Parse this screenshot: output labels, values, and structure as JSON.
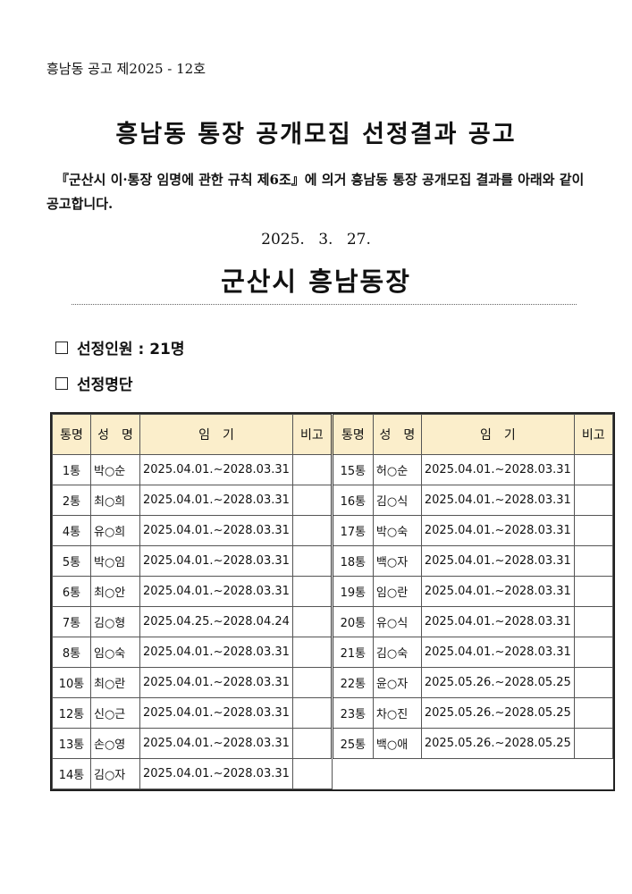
{
  "notice_no": "흥남동 공고 제2025 - 12호",
  "title": "흥남동 통장 공개모집 선정결과 공고",
  "body": "『군산시 이·통장 임명에 관한 규칙 제6조』에 의거 흥남동 통장 공개모집 결과를 아래와 같이 공고합니다.",
  "date": "2025. 3. 27.",
  "issuer": "군산시 흥남동장",
  "sections": {
    "count": "선정인원 : 21명",
    "list": "선정명단"
  },
  "table": {
    "headers": [
      "통명",
      "성　명",
      "임　기",
      "비고"
    ],
    "left": [
      [
        "1통",
        "박○순",
        "2025.04.01.~2028.03.31",
        ""
      ],
      [
        "2통",
        "최○희",
        "2025.04.01.~2028.03.31",
        ""
      ],
      [
        "4통",
        "유○희",
        "2025.04.01.~2028.03.31",
        ""
      ],
      [
        "5통",
        "박○임",
        "2025.04.01.~2028.03.31",
        ""
      ],
      [
        "6통",
        "최○안",
        "2025.04.01.~2028.03.31",
        ""
      ],
      [
        "7통",
        "김○형",
        "2025.04.25.~2028.04.24",
        ""
      ],
      [
        "8통",
        "임○숙",
        "2025.04.01.~2028.03.31",
        ""
      ],
      [
        "10통",
        "최○란",
        "2025.04.01.~2028.03.31",
        ""
      ],
      [
        "12통",
        "신○근",
        "2025.04.01.~2028.03.31",
        ""
      ],
      [
        "13통",
        "손○영",
        "2025.04.01.~2028.03.31",
        ""
      ],
      [
        "14통",
        "김○자",
        "2025.04.01.~2028.03.31",
        ""
      ]
    ],
    "right": [
      [
        "15통",
        "허○순",
        "2025.04.01.~2028.03.31",
        ""
      ],
      [
        "16통",
        "김○식",
        "2025.04.01.~2028.03.31",
        ""
      ],
      [
        "17통",
        "박○숙",
        "2025.04.01.~2028.03.31",
        ""
      ],
      [
        "18통",
        "백○자",
        "2025.04.01.~2028.03.31",
        ""
      ],
      [
        "19통",
        "임○란",
        "2025.04.01.~2028.03.31",
        ""
      ],
      [
        "20통",
        "유○식",
        "2025.04.01.~2028.03.31",
        ""
      ],
      [
        "21통",
        "김○숙",
        "2025.04.01.~2028.03.31",
        ""
      ],
      [
        "22통",
        "윤○자",
        "2025.05.26.~2028.05.25",
        ""
      ],
      [
        "23통",
        "차○진",
        "2025.05.26.~2028.05.25",
        ""
      ],
      [
        "25통",
        "백○애",
        "2025.05.26.~2028.05.25",
        ""
      ]
    ]
  }
}
